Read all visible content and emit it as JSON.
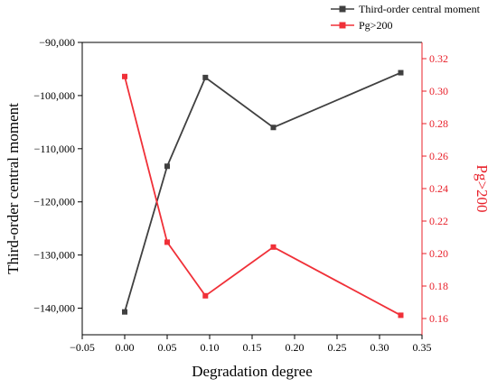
{
  "chart_data": {
    "type": "line",
    "xlabel": "Degradation degree",
    "xlim": [
      -0.05,
      0.35
    ],
    "xticks": [
      -0.05,
      0.0,
      0.05,
      0.1,
      0.15,
      0.2,
      0.25,
      0.3,
      0.35
    ],
    "xtick_labels": [
      "−0.05",
      "0.00",
      "0.05",
      "0.10",
      "0.15",
      "0.20",
      "0.25",
      "0.30",
      "0.35"
    ],
    "left_axis": {
      "label": "Third-order central moment",
      "ylim": [
        -145000,
        -90000
      ],
      "ticks": [
        -90000,
        -100000,
        -110000,
        -120000,
        -130000,
        -140000
      ],
      "tick_labels": [
        "−90,000",
        "−100,000",
        "−110,000",
        "−120,000",
        "−130,000",
        "−140,000"
      ],
      "color": "#000000"
    },
    "right_axis": {
      "label": "Pg>200",
      "ylim": [
        0.15,
        0.33
      ],
      "ticks": [
        0.16,
        0.18,
        0.2,
        0.22,
        0.24,
        0.26,
        0.28,
        0.3,
        0.32
      ],
      "tick_labels": [
        "0.16",
        "0.18",
        "0.20",
        "0.22",
        "0.24",
        "0.26",
        "0.28",
        "0.30",
        "0.32"
      ],
      "color": "#e8202a"
    },
    "series": [
      {
        "name": "Third-order central moment",
        "axis": "left",
        "color": "#404040",
        "x": [
          0.0,
          0.05,
          0.095,
          0.175,
          0.325
        ],
        "y": [
          -140700,
          -113300,
          -96600,
          -106000,
          -95700
        ]
      },
      {
        "name": "Pg>200",
        "axis": "right",
        "color": "#f03038",
        "x": [
          0.0,
          0.05,
          0.095,
          0.175,
          0.325
        ],
        "y": [
          0.309,
          0.207,
          0.174,
          0.204,
          0.162
        ]
      }
    ],
    "legend_position": "top-right",
    "grid": false
  }
}
